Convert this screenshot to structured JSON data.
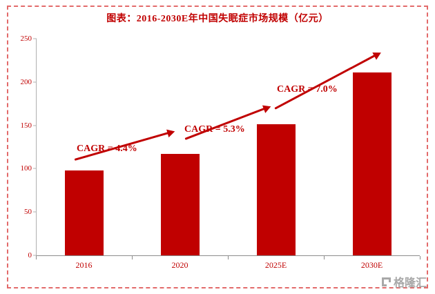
{
  "title": "图表：2016-2030E年中国失眠症市场规模（亿元）",
  "chart_data": {
    "type": "bar",
    "title": "图表：2016-2030E年中国失眠症市场规模（亿元）",
    "categories": [
      "2016",
      "2020",
      "2025E",
      "2030E"
    ],
    "values": [
      98,
      117,
      151,
      211
    ],
    "xlabel": "",
    "ylabel": "",
    "ylim": [
      0,
      250
    ],
    "yticks": [
      0,
      50,
      100,
      150,
      200,
      250
    ],
    "grid": false,
    "legend": "none",
    "bar_color": "#c00000",
    "annotations": [
      {
        "label": "CAGR = 4.4%"
      },
      {
        "label": "CAGR = 5.3%"
      },
      {
        "label": "CAGR = 7.0%"
      }
    ]
  },
  "watermark": {
    "text": "格隆汇"
  }
}
